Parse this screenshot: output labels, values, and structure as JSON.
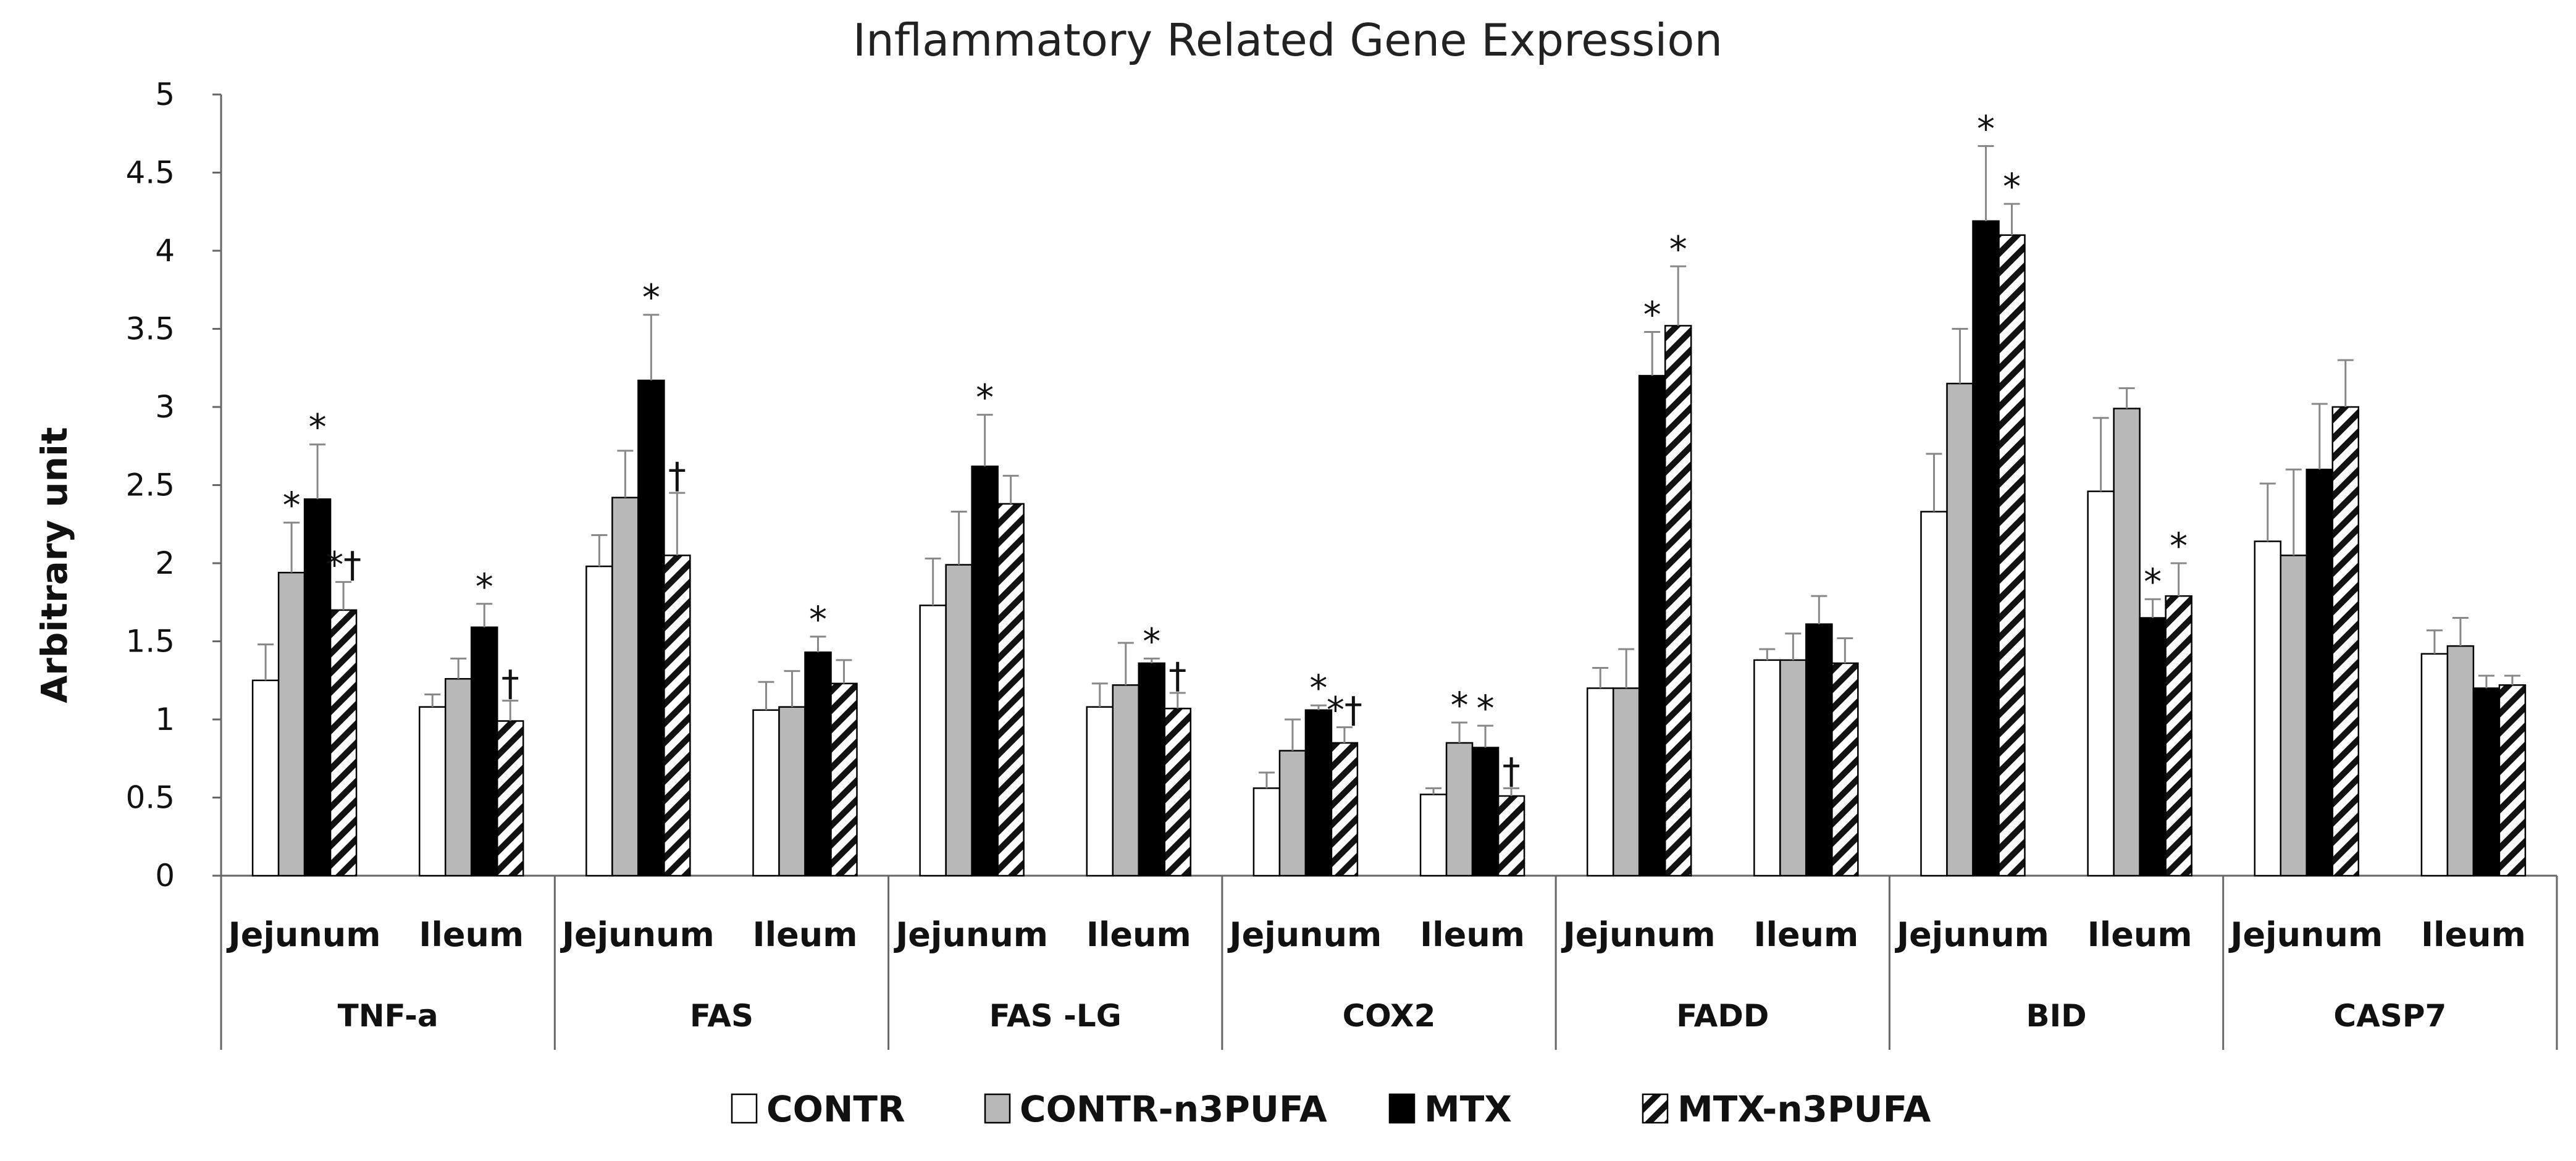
{
  "chart_data": {
    "type": "bar",
    "title": "Inflammatory Related Gene Expression",
    "ylabel": "Arbitrary unit",
    "xlabel": "",
    "ylim": [
      0,
      5
    ],
    "yticks": [
      0,
      0.5,
      1,
      1.5,
      2,
      2.5,
      3,
      3.5,
      4,
      4.5,
      5
    ],
    "ytick_labels": [
      "0",
      "0.5",
      "1",
      "1.5",
      "2",
      "2.5",
      "3",
      "3.5",
      "4",
      "4.5",
      "5"
    ],
    "groups": [
      "TNF-a",
      "FAS",
      "FAS -LG",
      "COX2",
      "FADD",
      "BID",
      "CASP7"
    ],
    "subcategories": [
      "Jejunum",
      "Ileum"
    ],
    "legend_position": "bottom",
    "series": [
      {
        "name": "CONTR",
        "pattern": "white",
        "values": [
          1.25,
          1.08,
          1.98,
          1.06,
          1.73,
          1.08,
          0.56,
          0.52,
          1.2,
          1.38,
          2.33,
          2.46,
          2.14,
          1.42
        ],
        "errors": [
          0.23,
          0.08,
          0.2,
          0.18,
          0.3,
          0.15,
          0.1,
          0.04,
          0.13,
          0.07,
          0.37,
          0.47,
          0.37,
          0.15
        ],
        "markers": [
          "",
          "",
          "",
          "",
          "",
          "",
          "",
          "",
          "",
          "",
          "",
          "",
          "",
          ""
        ]
      },
      {
        "name": "CONTR-n3PUFA",
        "pattern": "gray",
        "values": [
          1.94,
          1.26,
          2.42,
          1.08,
          1.99,
          1.22,
          0.8,
          0.85,
          1.2,
          1.38,
          3.15,
          2.99,
          2.05,
          1.47
        ],
        "errors": [
          0.32,
          0.13,
          0.3,
          0.23,
          0.34,
          0.27,
          0.2,
          0.13,
          0.25,
          0.17,
          0.35,
          0.13,
          0.55,
          0.18
        ],
        "markers": [
          "*",
          "",
          "",
          "",
          "",
          "",
          "",
          "*",
          "",
          "",
          "",
          "",
          "",
          ""
        ]
      },
      {
        "name": "MTX",
        "pattern": "black",
        "values": [
          2.41,
          1.59,
          3.17,
          1.43,
          2.62,
          1.36,
          1.06,
          0.82,
          3.2,
          1.61,
          4.19,
          1.65,
          2.6,
          1.2
        ],
        "errors": [
          0.35,
          0.15,
          0.42,
          0.1,
          0.33,
          0.03,
          0.03,
          0.14,
          0.28,
          0.18,
          0.48,
          0.12,
          0.42,
          0.08
        ],
        "markers": [
          "*",
          "*",
          "*",
          "*",
          "*",
          "*",
          "*",
          "*",
          "*",
          "",
          "*",
          "*",
          "",
          ""
        ]
      },
      {
        "name": "MTX-n3PUFA",
        "pattern": "hatched",
        "values": [
          1.7,
          0.99,
          2.05,
          1.23,
          2.38,
          1.07,
          0.85,
          0.51,
          3.52,
          1.36,
          4.1,
          1.79,
          3.0,
          1.22
        ],
        "errors": [
          0.18,
          0.13,
          0.4,
          0.15,
          0.18,
          0.1,
          0.1,
          0.05,
          0.38,
          0.16,
          0.2,
          0.21,
          0.3,
          0.06
        ],
        "markers": [
          "*†",
          "†",
          "†",
          "",
          "",
          "†",
          "*†",
          "†",
          "*",
          "",
          "*",
          "*",
          "",
          ""
        ]
      }
    ]
  }
}
